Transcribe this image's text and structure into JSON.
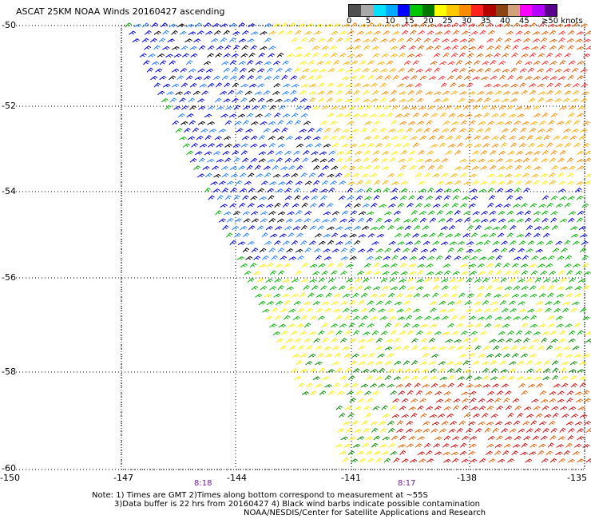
{
  "title": "ASCAT 25KM NOAA Winds 20160427 ascending",
  "legend": {
    "colors": [
      "#505050",
      "#a8a8a8",
      "#00e0ff",
      "#00a8ff",
      "#0000ff",
      "#00c800",
      "#007800",
      "#ffff00",
      "#ffc800",
      "#ff8c00",
      "#ff2020",
      "#b40000",
      "#8b4513",
      "#d2a07a",
      "#ff00ff",
      "#b400ff",
      "#5a008c"
    ],
    "labels": [
      "0",
      "5",
      "10",
      "15",
      "20",
      "25",
      "30",
      "35",
      "40",
      "45",
      "≥50 knots"
    ]
  },
  "lat_labels": [
    "-50",
    "-52",
    "-54",
    "-56",
    "-58",
    "-60"
  ],
  "lon_labels": [
    "-150",
    "-147",
    "-144",
    "-141",
    "-138",
    "-135"
  ],
  "time_labels": [
    "8:18",
    "8:17"
  ],
  "notes": [
    "Note: 1) Times are GMT 2)Times along bottom correspond to measurement at ~55S",
    "3)Data buffer is 22 hrs from 20160427 4) Black wind barbs indicate possible contamination",
    "NOAA/NESDIS/Center for Satellite Applications and Research"
  ],
  "bands": {
    "high_wind": {
      "colors": [
        "#ffd700",
        "#ffb000",
        "#ff8c00",
        "#e06000",
        "#ff3030",
        "#cc1010"
      ]
    },
    "mid_wind": {
      "colors": [
        "#ffee00",
        "#ffd000",
        "#00b400",
        "#008c00",
        "#0000e0",
        "#2080ff",
        "#000000"
      ]
    }
  }
}
